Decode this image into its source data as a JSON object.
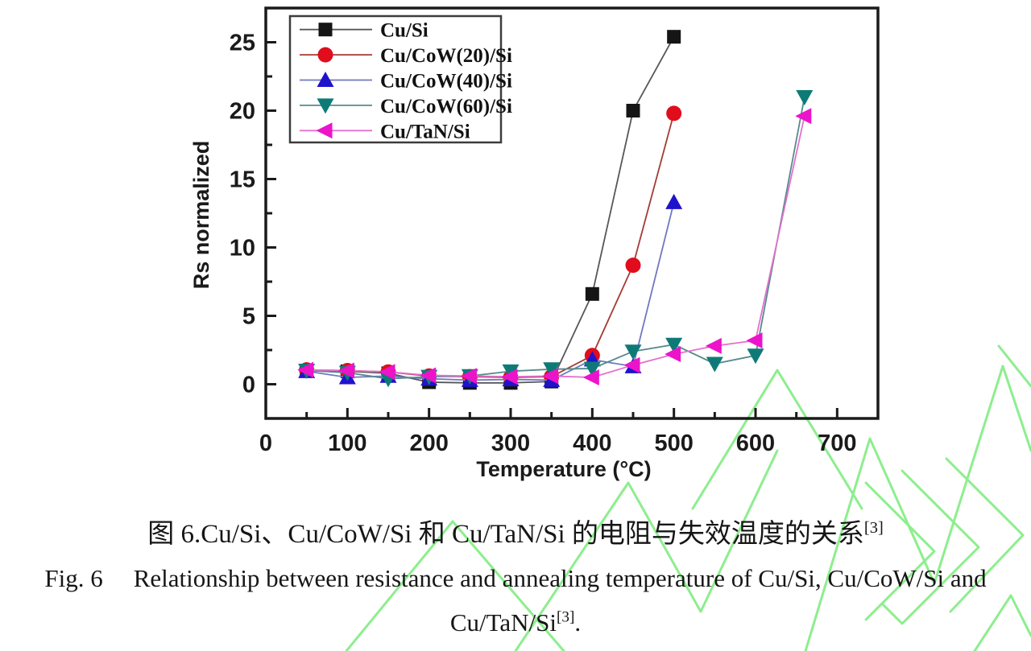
{
  "figure": {
    "caption_zh": "图 6.Cu/Si、Cu/CoW/Si 和 Cu/TaN/Si 的电阻与失效温度的关系",
    "caption_zh_sup": "[3]",
    "caption_en_fig": "Fig. 6",
    "caption_en_line1": "Relationship between resistance and annealing temperature of Cu/Si, Cu/CoW/Si and",
    "caption_en_line2": "Cu/TaN/Si",
    "caption_en_sup": "[3]",
    "caption_en_period": "."
  },
  "chart_data": {
    "type": "line",
    "title": "",
    "xlabel": "Temperature (°C)",
    "ylabel": "Rs normalized",
    "xlim": [
      0,
      750
    ],
    "ylim": [
      -2.5,
      27.5
    ],
    "x_major_ticks": [
      0,
      100,
      200,
      300,
      400,
      500,
      600,
      700
    ],
    "x_minor_step": 50,
    "y_major_ticks": [
      0,
      5,
      10,
      15,
      20,
      25
    ],
    "y_minor_step": 2.5,
    "grid": false,
    "legend_position": "top-left",
    "axis_color": "#1a1a1a",
    "watermark_color": "#8dee8d",
    "series": [
      {
        "name": "Cu/Si",
        "marker": "square",
        "marker_color": "#151515",
        "line_color": "#575757",
        "x": [
          50,
          100,
          150,
          200,
          250,
          300,
          350,
          400,
          450,
          500
        ],
        "y": [
          1.0,
          0.95,
          0.8,
          0.15,
          0.1,
          0.1,
          0.2,
          6.6,
          20.0,
          25.4
        ]
      },
      {
        "name": "Cu/CoW(20)/Si",
        "marker": "circle",
        "marker_color": "#e10d1d",
        "line_color": "#a23c34",
        "x": [
          50,
          100,
          150,
          200,
          250,
          300,
          350,
          400,
          450,
          500
        ],
        "y": [
          1.05,
          1.0,
          0.9,
          0.6,
          0.55,
          0.5,
          0.55,
          2.1,
          8.7,
          19.8
        ]
      },
      {
        "name": "Cu/CoW(40)/Si",
        "marker": "triangle-up",
        "marker_color": "#2013cc",
        "line_color": "#7078be",
        "x": [
          50,
          100,
          150,
          200,
          250,
          300,
          350,
          400,
          450,
          500
        ],
        "y": [
          0.95,
          0.5,
          0.6,
          0.4,
          0.3,
          0.35,
          0.3,
          1.8,
          1.3,
          13.3
        ]
      },
      {
        "name": "Cu/CoW(60)/Si",
        "marker": "triangle-down",
        "marker_color": "#0e7a78",
        "line_color": "#568b8c",
        "x": [
          50,
          100,
          150,
          200,
          250,
          300,
          350,
          400,
          450,
          500,
          550,
          600,
          660
        ],
        "y": [
          1.0,
          0.85,
          0.4,
          0.55,
          0.6,
          0.95,
          1.1,
          1.15,
          2.4,
          2.9,
          1.5,
          2.1,
          21.0
        ]
      },
      {
        "name": "Cu/TaN/Si",
        "marker": "triangle-left",
        "marker_color": "#ec13cb",
        "line_color": "#e470cd",
        "x": [
          50,
          100,
          150,
          200,
          250,
          300,
          350,
          400,
          450,
          500,
          550,
          600,
          660
        ],
        "y": [
          1.05,
          1.0,
          0.9,
          0.65,
          0.6,
          0.55,
          0.6,
          0.5,
          1.4,
          2.2,
          2.8,
          3.2,
          19.6
        ]
      }
    ]
  }
}
